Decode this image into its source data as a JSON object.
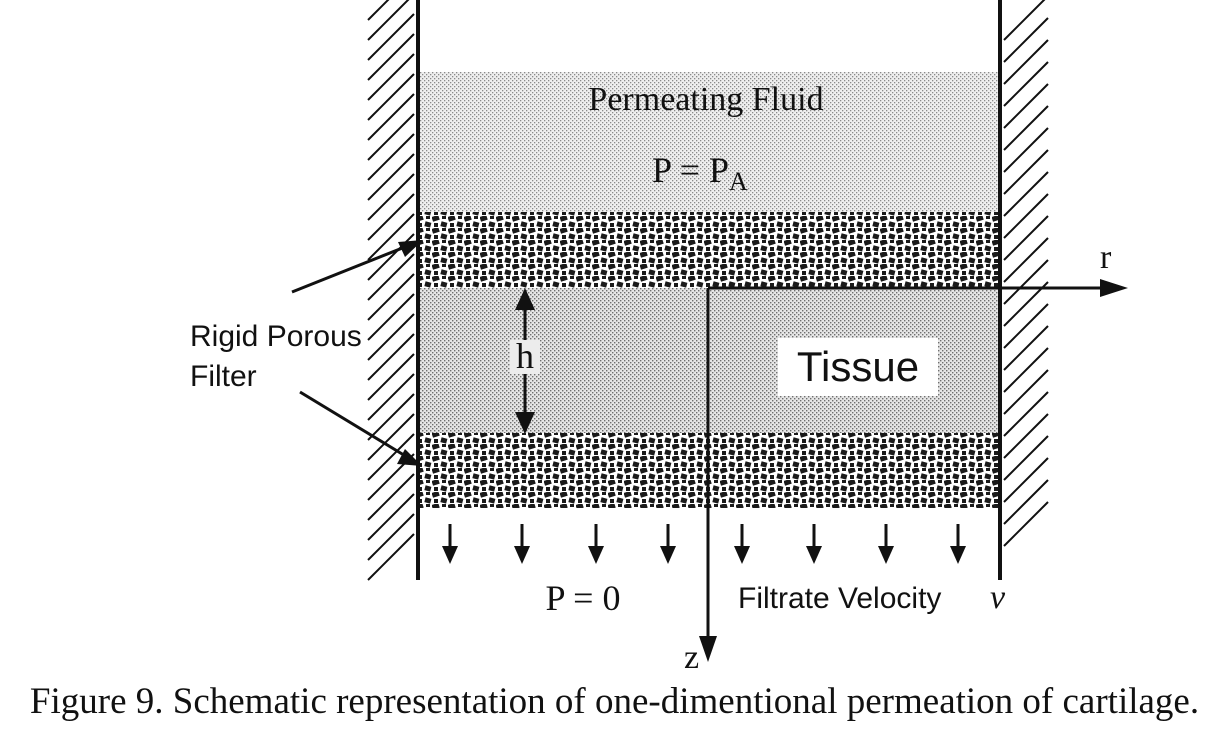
{
  "diagram": {
    "fluid_label": "Permeating Fluid",
    "pressure_top": {
      "main": "P = P",
      "subscript": "A"
    },
    "tissue_label": "Tissue",
    "filter_label": {
      "line1": "Rigid Porous",
      "line2": "Filter"
    },
    "thickness_label": "h",
    "pressure_bottom": "P = 0",
    "filtrate_label": "Filtrate Velocity",
    "velocity_symbol": "v",
    "axis_r": "r",
    "axis_z": "z"
  },
  "caption": "Figure 9. Schematic representation of one-dimentional permeation of cartilage."
}
